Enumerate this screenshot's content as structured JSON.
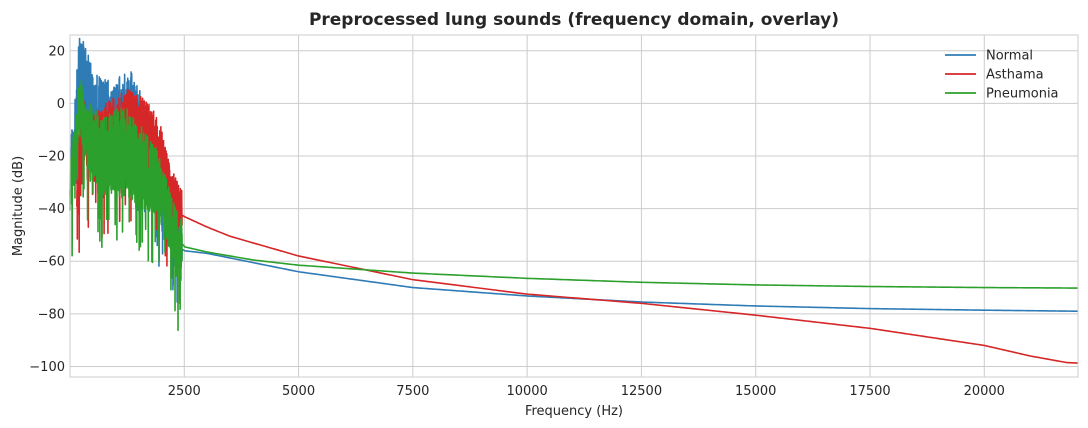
{
  "chart_data": {
    "type": "line",
    "title": "Preprocessed lung sounds (frequency domain, overlay)",
    "xlabel": "Frequency (Hz)",
    "ylabel": "Magnitude (dB)",
    "xlim": [
      0,
      22050
    ],
    "ylim": [
      -104,
      26
    ],
    "xticks": [
      2500,
      5000,
      7500,
      10000,
      12500,
      15000,
      17500,
      20000
    ],
    "xtick_labels": [
      "2500",
      "5000",
      "7500",
      "10000",
      "12500",
      "15000",
      "17500",
      "20000"
    ],
    "yticks": [
      20,
      0,
      -20,
      -40,
      -60,
      -80,
      -100
    ],
    "ytick_labels": [
      "20",
      "0",
      "−20",
      "−40",
      "−60",
      "−80",
      "−100"
    ],
    "grid": true,
    "legend_position": "top-right",
    "series": [
      {
        "name": "Normal",
        "color": "#2f7bb5",
        "noise_band": {
          "x_start": 0,
          "x_end": 2450
        },
        "points": [
          [
            0,
            -25
          ],
          [
            100,
            -12
          ],
          [
            200,
            15
          ],
          [
            300,
            12
          ],
          [
            500,
            0
          ],
          [
            700,
            -5
          ],
          [
            1000,
            -8
          ],
          [
            1300,
            -4
          ],
          [
            1500,
            -10
          ],
          [
            1800,
            -20
          ],
          [
            2000,
            -30
          ],
          [
            2200,
            -45
          ],
          [
            2400,
            -55
          ],
          [
            2500,
            -56
          ],
          [
            3000,
            -57
          ],
          [
            4000,
            -60.5
          ],
          [
            5000,
            -64
          ],
          [
            7500,
            -70
          ],
          [
            10000,
            -73.2
          ],
          [
            12500,
            -75.5
          ],
          [
            15000,
            -77
          ],
          [
            17500,
            -78
          ],
          [
            20000,
            -78.6
          ],
          [
            22050,
            -79
          ]
        ]
      },
      {
        "name": "Asthama",
        "color": "#d62728",
        "noise_band": {
          "x_start": 150,
          "x_end": 2450
        },
        "points": [
          [
            150,
            -30
          ],
          [
            300,
            -10
          ],
          [
            500,
            -18
          ],
          [
            800,
            -15
          ],
          [
            1200,
            -12
          ],
          [
            1500,
            -12
          ],
          [
            1800,
            -15
          ],
          [
            2000,
            -22
          ],
          [
            2200,
            -35
          ],
          [
            2400,
            -42
          ],
          [
            2500,
            -43
          ],
          [
            3000,
            -47
          ],
          [
            3500,
            -50.5
          ],
          [
            5000,
            -58
          ],
          [
            7500,
            -67
          ],
          [
            10000,
            -72.5
          ],
          [
            12500,
            -76
          ],
          [
            15000,
            -80.5
          ],
          [
            17500,
            -85.5
          ],
          [
            20000,
            -92
          ],
          [
            21000,
            -96
          ],
          [
            21800,
            -98.5
          ],
          [
            22050,
            -98.7
          ]
        ]
      },
      {
        "name": "Pneumonia",
        "color": "#2ca02c",
        "noise_band": {
          "x_start": 0,
          "x_end": 2450
        },
        "points": [
          [
            0,
            -32
          ],
          [
            100,
            -20
          ],
          [
            200,
            0
          ],
          [
            400,
            -12
          ],
          [
            700,
            -20
          ],
          [
            1000,
            -18
          ],
          [
            1300,
            -20
          ],
          [
            1600,
            -25
          ],
          [
            1900,
            -30
          ],
          [
            2100,
            -40
          ],
          [
            2300,
            -50
          ],
          [
            2500,
            -54.5
          ],
          [
            3000,
            -56.5
          ],
          [
            4000,
            -59.5
          ],
          [
            5000,
            -61.5
          ],
          [
            7500,
            -64.5
          ],
          [
            10000,
            -66.5
          ],
          [
            12500,
            -68
          ],
          [
            15000,
            -69
          ],
          [
            17500,
            -69.6
          ],
          [
            20000,
            -70
          ],
          [
            22050,
            -70.2
          ]
        ]
      }
    ]
  }
}
